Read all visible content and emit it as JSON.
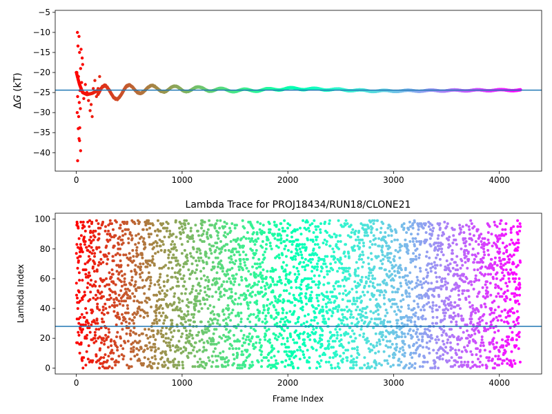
{
  "chart_data": [
    {
      "type": "scatter",
      "title": "",
      "xlabel": "",
      "ylabel": "ΔG (kT)",
      "ylabel_symbol": "Δ",
      "ylabel_var": "G",
      "ylabel_unit": " (kT)",
      "xlim": [
        -200,
        4400
      ],
      "ylim": [
        -44.6,
        -4.5
      ],
      "xticks": [
        0,
        1000,
        2000,
        3000,
        4000
      ],
      "xtick_labels": [
        "0",
        "1000",
        "2000",
        "3000",
        "4000"
      ],
      "yticks": [
        -40,
        -35,
        -30,
        -25,
        -20,
        -15,
        -10,
        -5
      ],
      "ytick_labels": [
        "−40",
        "−35",
        "−30",
        "−25",
        "−20",
        "−15",
        "−10",
        "−5"
      ],
      "colormap": "rainbow (reversed: red at frame 0, violet at last frame)",
      "reference_line": {
        "y": -24.4,
        "color": "#1f77b4"
      },
      "n_frames": 4200,
      "early_points": [
        [
          10,
          -10.0
        ],
        [
          25,
          -11.0
        ],
        [
          15,
          -13.4
        ],
        [
          30,
          -15.0
        ],
        [
          45,
          -14.2
        ],
        [
          55,
          -16.4
        ],
        [
          5,
          -20.0
        ],
        [
          20,
          -21.0
        ],
        [
          40,
          -19.0
        ],
        [
          60,
          -18.0
        ],
        [
          35,
          -24.5
        ],
        [
          50,
          -22.5
        ],
        [
          12,
          -26.0
        ],
        [
          28,
          -27.5
        ],
        [
          8,
          -30.0
        ],
        [
          22,
          -31.0
        ],
        [
          38,
          -29.0
        ],
        [
          18,
          -34.0
        ],
        [
          32,
          -33.8
        ],
        [
          25,
          -36.5
        ],
        [
          40,
          -39.5
        ],
        [
          30,
          -37.0
        ],
        [
          12,
          -42.0
        ],
        [
          70,
          -26.5
        ],
        [
          85,
          -23.0
        ],
        [
          100,
          -25.0
        ],
        [
          115,
          -27.0
        ],
        [
          130,
          -29.5
        ],
        [
          140,
          -28.0
        ],
        [
          150,
          -31.0
        ],
        [
          160,
          -24.0
        ],
        [
          175,
          -22.0
        ],
        [
          190,
          -26.0
        ],
        [
          205,
          -24.0
        ],
        [
          220,
          -21.0
        ]
      ],
      "trace": [
        [
          0,
          -20.0
        ],
        [
          30,
          -23.0
        ],
        [
          60,
          -25.0
        ],
        [
          100,
          -25.5
        ],
        [
          150,
          -25.2
        ],
        [
          200,
          -24.5
        ],
        [
          250,
          -25.0
        ],
        [
          300,
          -25.4
        ],
        [
          400,
          -25.0
        ],
        [
          500,
          -24.5
        ],
        [
          600,
          -24.0
        ],
        [
          700,
          -24.3
        ],
        [
          800,
          -24.0
        ],
        [
          900,
          -24.1
        ],
        [
          1000,
          -24.2
        ],
        [
          1200,
          -24.1
        ],
        [
          1400,
          -24.4
        ],
        [
          1600,
          -24.5
        ],
        [
          1800,
          -24.3
        ],
        [
          2000,
          -24.0
        ],
        [
          2200,
          -24.1
        ],
        [
          2500,
          -24.3
        ],
        [
          2800,
          -24.6
        ],
        [
          3000,
          -24.6
        ],
        [
          3500,
          -24.5
        ],
        [
          4000,
          -24.4
        ],
        [
          4200,
          -24.4
        ]
      ]
    },
    {
      "type": "scatter",
      "title": "Lambda Trace for PROJ18434/RUN18/CLONE21",
      "xlabel": "Frame Index",
      "ylabel": "Lambda Index",
      "xlim": [
        -200,
        4400
      ],
      "ylim": [
        -4,
        104
      ],
      "xticks": [
        0,
        1000,
        2000,
        3000,
        4000
      ],
      "xtick_labels": [
        "0",
        "1000",
        "2000",
        "3000",
        "4000"
      ],
      "yticks": [
        0,
        20,
        40,
        60,
        80,
        100
      ],
      "ytick_labels": [
        "0",
        "20",
        "40",
        "60",
        "80",
        "100"
      ],
      "colormap": "rainbow (reversed: red at frame 0, violet at last frame)",
      "reference_line": {
        "y": 28,
        "color": "#1f77b4"
      },
      "n_frames": 4200,
      "lambda_range": [
        0,
        99
      ],
      "point_count": 4200,
      "description_of_distribution": "uniform random lambda indices 0–99 across frames 0–4200"
    }
  ]
}
